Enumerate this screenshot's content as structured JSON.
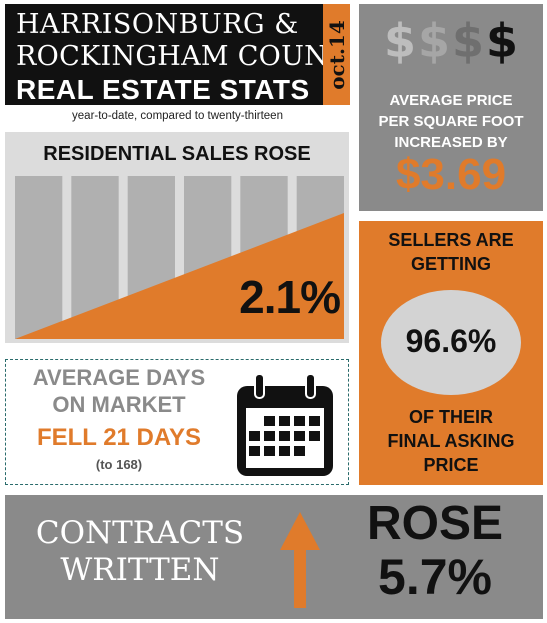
{
  "header": {
    "line1": "HARRISONBURG &",
    "line2": "ROCKINGHAM COUNTY",
    "line3": "REAL ESTATE STATS",
    "date": "oct.14",
    "subtitle": "year-to-date, compared to twenty-thirteen"
  },
  "residential_sales": {
    "title": "RESIDENTIAL SALES ROSE",
    "value": "2.1%",
    "bar_count": 6
  },
  "price_per_sqft": {
    "icon_names": [
      "dollar-icon",
      "dollar-icon",
      "dollar-icon",
      "dollar-icon"
    ],
    "label_lines": [
      "AVERAGE PRICE",
      "PER SQUARE FOOT",
      "INCREASED BY"
    ],
    "value": "$3.69"
  },
  "days_on_market": {
    "title_lines": [
      "AVERAGE DAYS",
      "ON MARKET"
    ],
    "value": "FELL 21 DAYS",
    "sub": "(to 168)",
    "icon": "calendar-icon"
  },
  "sellers": {
    "top_lines": [
      "SELLERS ARE",
      "GETTING"
    ],
    "value": "96.6%",
    "bottom_lines": [
      "OF THEIR",
      "FINAL ASKING",
      "PRICE"
    ]
  },
  "contracts": {
    "label_lines": [
      "CONTRACTS",
      "WRITTEN"
    ],
    "direction": "ROSE",
    "value": "5.7%",
    "icon": "up-arrow-icon"
  },
  "colors": {
    "orange": "#e07b2b",
    "dark": "#111111",
    "gray": "#8a8a8a",
    "light_gray": "#dcdcdc"
  }
}
